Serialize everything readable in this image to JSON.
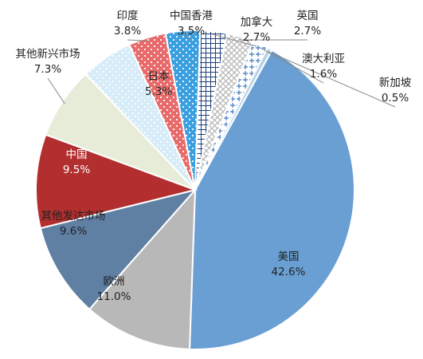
{
  "chart_data": {
    "type": "pie",
    "title": "",
    "start_angle_deg": 0,
    "direction": "clockwise",
    "slices": [
      {
        "label": "美国",
        "value": 42.6,
        "value_label": "42.6%",
        "color": "#6a9fd4",
        "pattern": "solid"
      },
      {
        "label": "欧洲",
        "value": 11.0,
        "value_label": "11.0%",
        "color": "#b8b8b8",
        "pattern": "solid"
      },
      {
        "label": "其他发达市场",
        "value": 9.6,
        "value_label": "9.6%",
        "color": "#5f7fa3",
        "pattern": "solid"
      },
      {
        "label": "中国",
        "value": 9.5,
        "value_label": "9.5%",
        "color": "#b32e2e",
        "pattern": "solid"
      },
      {
        "label": "其他新兴市场",
        "value": 7.3,
        "value_label": "7.3%",
        "color": "#e6ecd8",
        "pattern": "solid"
      },
      {
        "label": "日本",
        "value": 5.3,
        "value_label": "5.3%",
        "color": "#d6ecf8",
        "pattern": "dots-white"
      },
      {
        "label": "印度",
        "value": 3.8,
        "value_label": "3.8%",
        "color": "#e86a6a",
        "pattern": "dots-white"
      },
      {
        "label": "中国香港",
        "value": 3.5,
        "value_label": "3.5%",
        "color": "#3a9fe0",
        "pattern": "dots-white"
      },
      {
        "label": "加拿大",
        "value": 2.7,
        "value_label": "2.7%",
        "color": "#1f3f7a",
        "pattern": "grid"
      },
      {
        "label": "英国",
        "value": 2.7,
        "value_label": "2.7%",
        "color": "#cccccc",
        "pattern": "diamond"
      },
      {
        "label": "澳大利亚",
        "value": 1.6,
        "value_label": "1.6%",
        "color": "#5a8cc8",
        "pattern": "cross"
      },
      {
        "label": "新加坡",
        "value": 0.5,
        "value_label": "0.5%",
        "color": "#b7d4ea",
        "pattern": "solid"
      }
    ]
  }
}
